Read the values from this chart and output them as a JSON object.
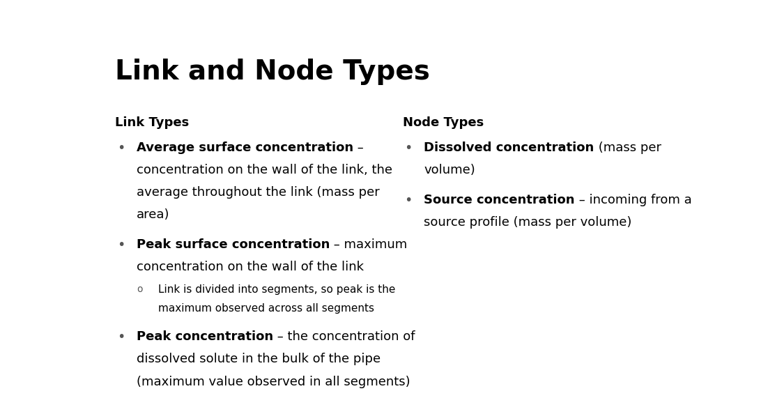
{
  "title": "Link and Node Types",
  "title_fontsize": 28,
  "background_color": "#ffffff",
  "text_color": "#000000",
  "bullet_color": "#555555",
  "link_header": "Link Types",
  "node_header": "Node Types",
  "header_fontsize": 13,
  "item_fontsize": 13,
  "sub_fontsize": 11,
  "link_items": [
    {
      "lines": [
        [
          {
            "bold": true,
            "text": "Average surface concentration"
          },
          {
            "bold": false,
            "text": " –"
          }
        ],
        [
          {
            "bold": false,
            "text": "concentration on the wall of the link, the"
          }
        ],
        [
          {
            "bold": false,
            "text": "average throughout the link (mass per"
          }
        ],
        [
          {
            "bold": false,
            "text": "area)"
          }
        ]
      ]
    },
    {
      "lines": [
        [
          {
            "bold": true,
            "text": "Peak surface concentration"
          },
          {
            "bold": false,
            "text": " – maximum"
          }
        ],
        [
          {
            "bold": false,
            "text": "concentration on the wall of the link"
          }
        ]
      ],
      "sub_lines": [
        "Link is divided into segments, so peak is the",
        "maximum observed across all segments"
      ]
    },
    {
      "lines": [
        [
          {
            "bold": true,
            "text": "Peak concentration"
          },
          {
            "bold": false,
            "text": " – the concentration of"
          }
        ],
        [
          {
            "bold": false,
            "text": "dissolved solute in the bulk of the pipe"
          }
        ],
        [
          {
            "bold": false,
            "text": "(maximum value observed in all segments)"
          }
        ]
      ]
    }
  ],
  "node_items": [
    {
      "lines": [
        [
          {
            "bold": true,
            "text": "Dissolved concentration"
          },
          {
            "bold": false,
            "text": " (mass per"
          }
        ],
        [
          {
            "bold": false,
            "text": "volume)"
          }
        ]
      ]
    },
    {
      "lines": [
        [
          {
            "bold": true,
            "text": "Source concentration"
          },
          {
            "bold": false,
            "text": " – incoming from a"
          }
        ],
        [
          {
            "bold": false,
            "text": "source profile (mass per volume)"
          }
        ]
      ]
    }
  ]
}
